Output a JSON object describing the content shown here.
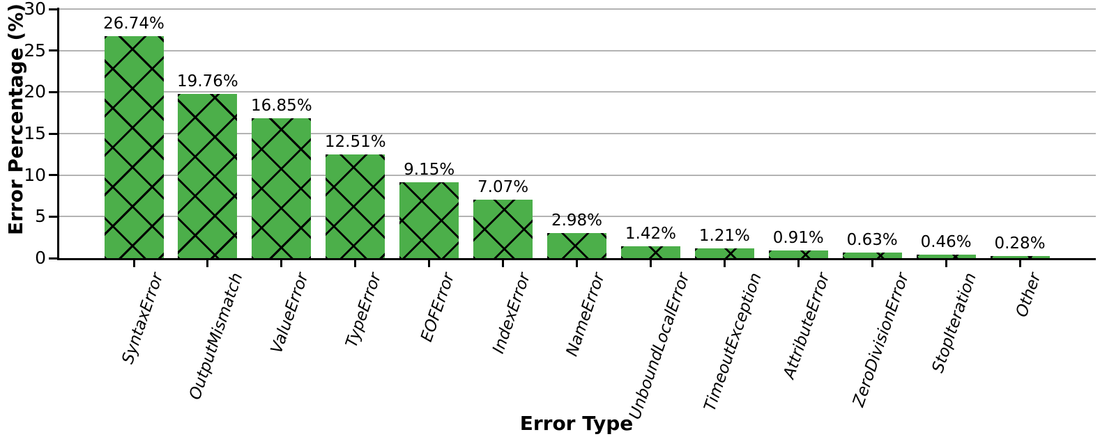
{
  "chart_data": {
    "type": "bar",
    "xlabel": "Error Type",
    "ylabel": "Error Percentage (%)",
    "categories": [
      "SyntaxError",
      "OutputMismatch",
      "ValueError",
      "TypeError",
      "EOFError",
      "IndexError",
      "NameError",
      "UnboundLocalError",
      "TimeoutException",
      "AttributeError",
      "ZeroDivisionError",
      "StopIteration",
      "Other"
    ],
    "values": [
      26.74,
      19.76,
      16.85,
      12.51,
      9.15,
      7.07,
      2.98,
      1.42,
      1.21,
      0.91,
      0.63,
      0.46,
      0.28
    ],
    "bar_labels": [
      "26.74%",
      "19.76%",
      "16.85%",
      "12.51%",
      "9.15%",
      "7.07%",
      "2.98%",
      "1.42%",
      "1.21%",
      "0.91%",
      "0.63%",
      "0.46%",
      "0.28%"
    ],
    "yticks": [
      0,
      5,
      10,
      15,
      20,
      25,
      30
    ],
    "ylim": [
      0,
      30
    ],
    "grid": true,
    "legend_position": "none",
    "bar_color": "#4caf4a",
    "hatch": "x",
    "hatch_color": "#000000",
    "grid_color": "#b3b3b3",
    "axis_color": "#000000",
    "text_color": "#000000"
  }
}
